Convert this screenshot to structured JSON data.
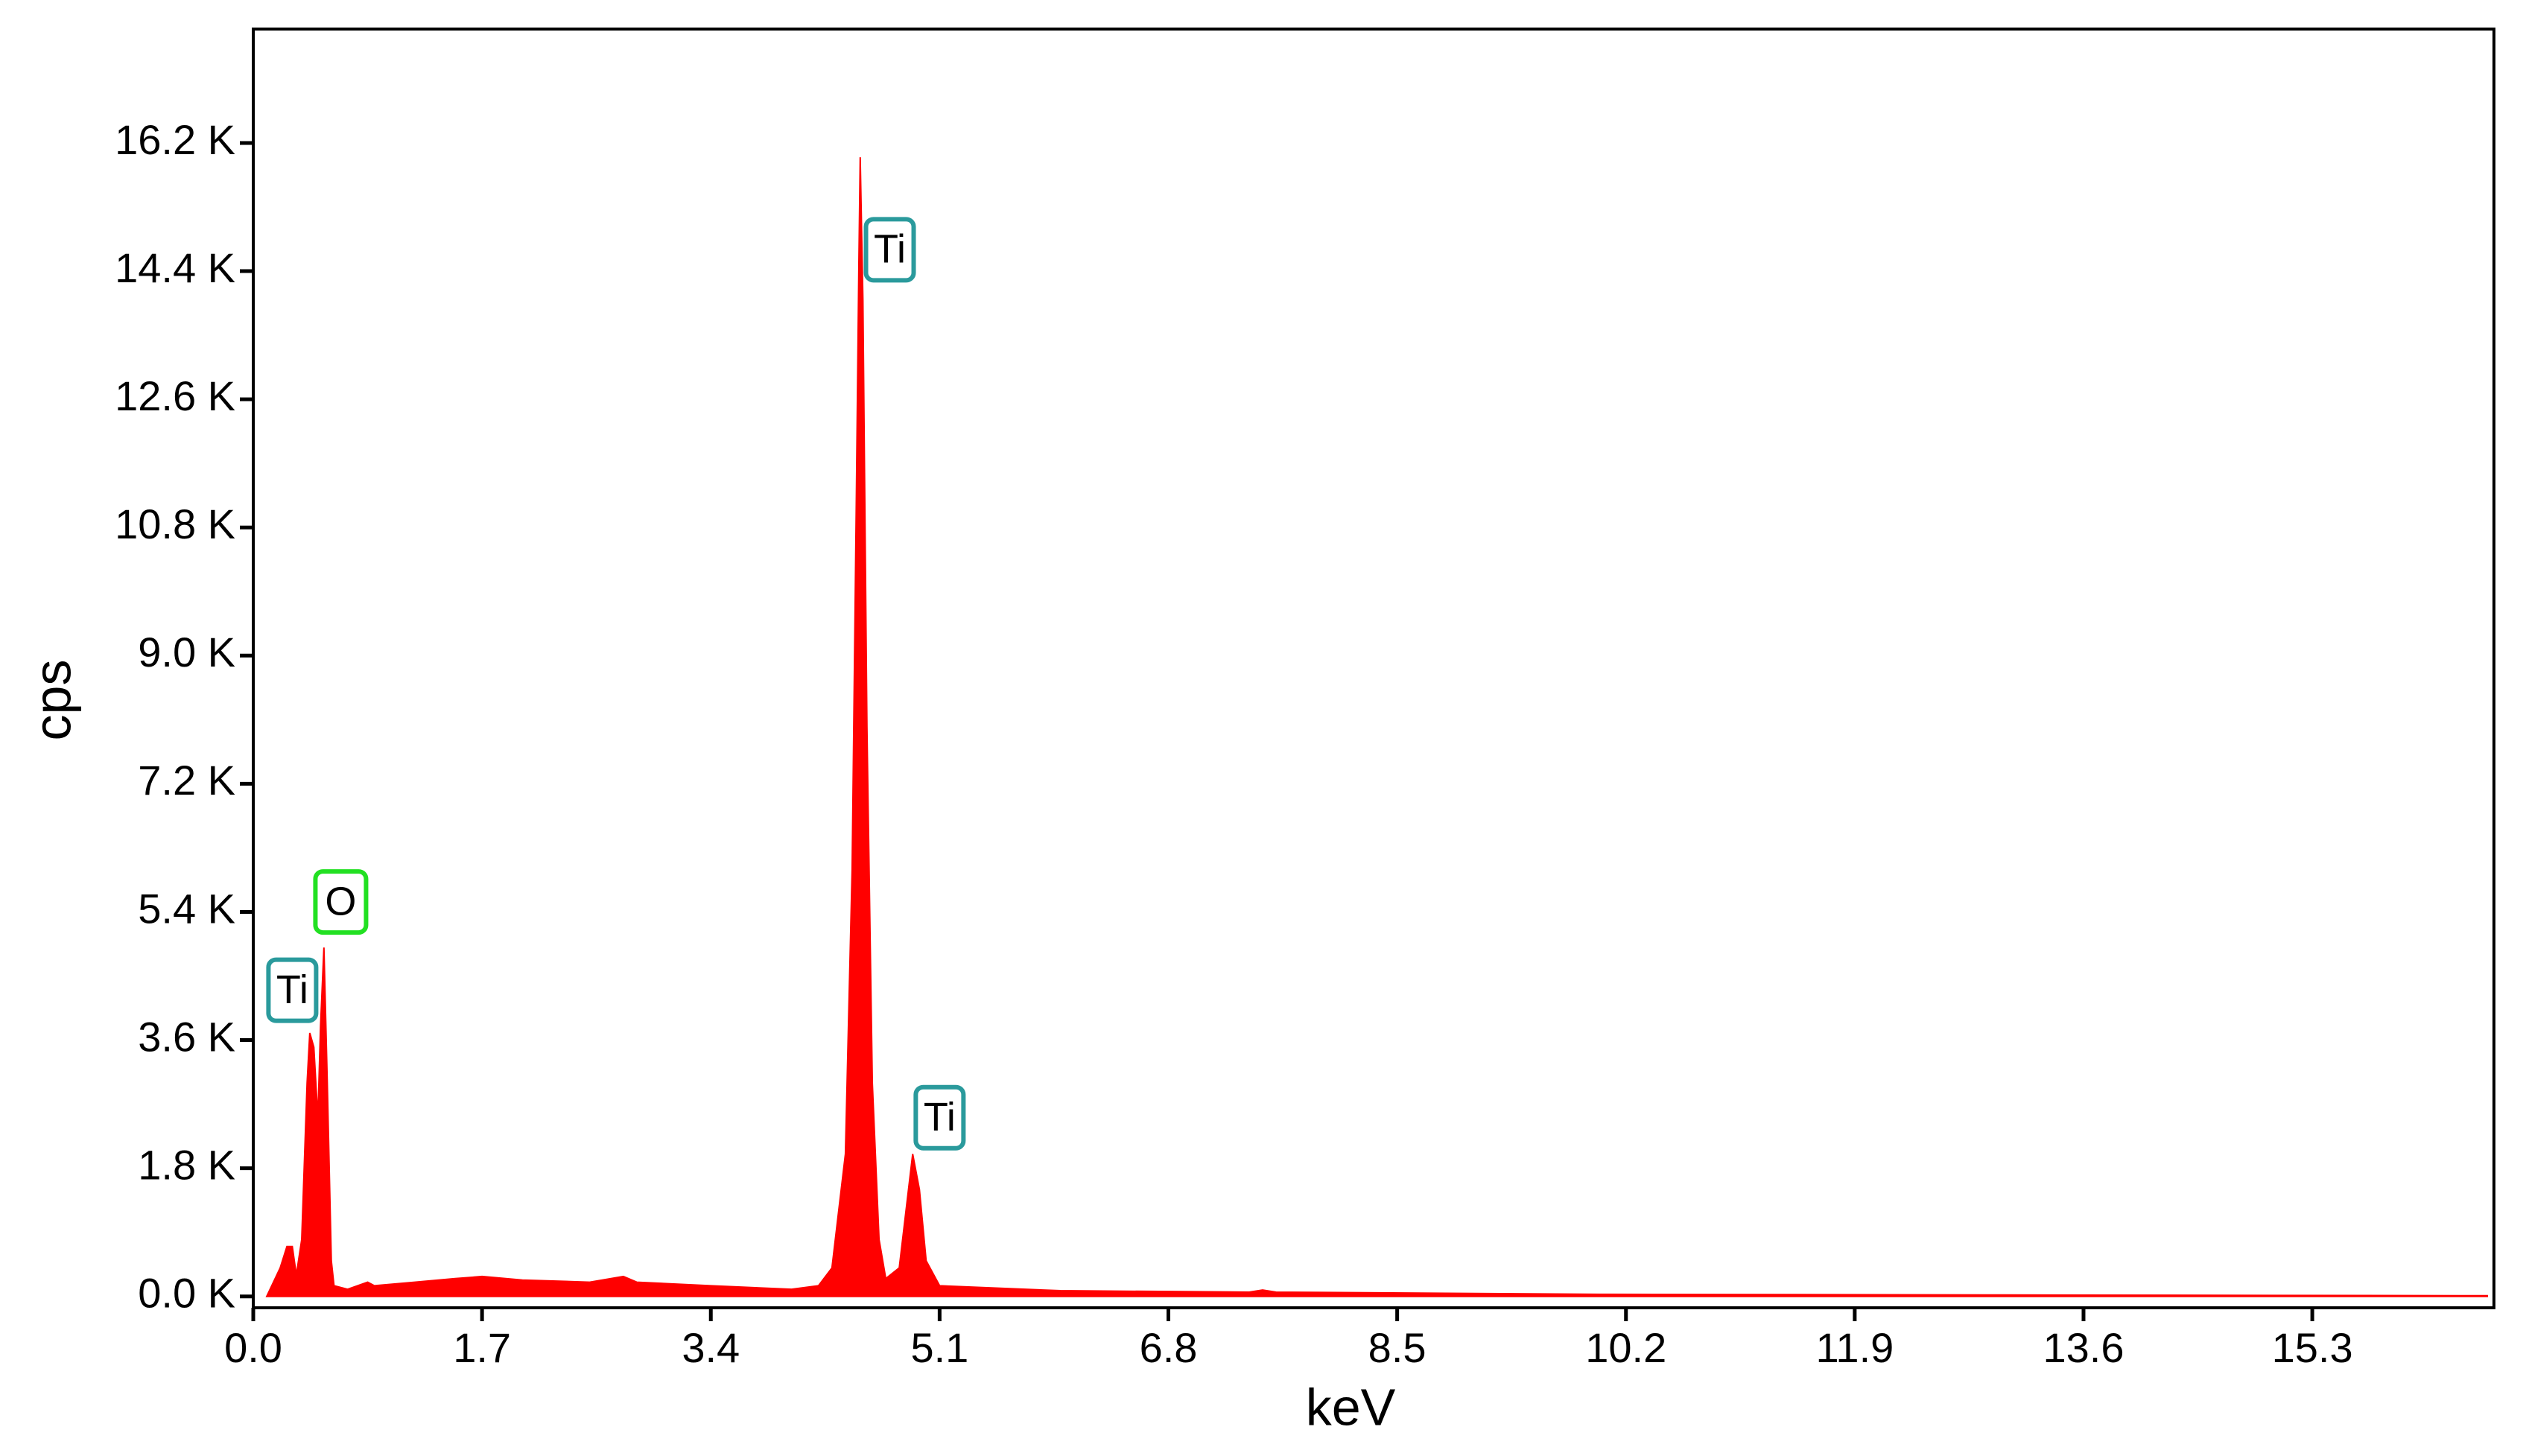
{
  "chart_data": {
    "type": "area",
    "xlabel": "keV",
    "ylabel": "cps",
    "x": [
      0.1,
      0.15,
      0.2,
      0.25,
      0.29,
      0.32,
      0.36,
      0.4,
      0.42,
      0.45,
      0.48,
      0.5,
      0.525,
      0.55,
      0.58,
      0.6,
      0.7,
      0.85,
      0.9,
      1.2,
      1.5,
      1.7,
      2.0,
      2.5,
      2.75,
      2.85,
      3.4,
      4.0,
      4.2,
      4.3,
      4.4,
      4.45,
      4.48,
      4.5,
      4.51,
      4.53,
      4.56,
      4.6,
      4.65,
      4.7,
      4.8,
      4.85,
      4.9,
      4.95,
      5.0,
      5.1,
      6.0,
      7.4,
      7.5,
      7.6,
      10,
      13,
      16.6
    ],
    "values": [
      0,
      200,
      400,
      700,
      700,
      300,
      800,
      3000,
      3700,
      3500,
      2500,
      3800,
      4900,
      3000,
      500,
      150,
      100,
      200,
      150,
      200,
      250,
      280,
      230,
      200,
      280,
      200,
      150,
      100,
      150,
      400,
      2000,
      6000,
      11000,
      14500,
      16000,
      14000,
      8000,
      3000,
      800,
      250,
      400,
      1200,
      2000,
      1500,
      500,
      150,
      80,
      60,
      90,
      60,
      30,
      20,
      10
    ],
    "color": "#ff0000",
    "xlim": [
      0,
      16.65
    ],
    "ylim": [
      -160,
      17800
    ],
    "xticks": [
      {
        "value": 0,
        "label": "0.0"
      },
      1.7,
      3.4,
      5.1,
      6.8,
      8.5,
      10.2,
      11.9,
      13.6,
      15.3
    ],
    "yticks": [
      {
        "value": 0,
        "label": "0.0 K"
      },
      {
        "value": 1800,
        "label": "1.8 K"
      },
      {
        "value": 3600,
        "label": "3.6 K"
      },
      {
        "value": 5400,
        "label": "5.4 K"
      },
      {
        "value": 7200,
        "label": "7.2 K"
      },
      {
        "value": 9000,
        "label": "9.0 K"
      },
      {
        "value": 10800,
        "label": "10.8 K"
      },
      {
        "value": 12600,
        "label": "12.6 K"
      },
      {
        "value": 14400,
        "label": "14.4 K"
      },
      {
        "value": 16200,
        "label": "16.2 K"
      }
    ],
    "annotations": [
      {
        "text": "Ti",
        "x": 0.29,
        "y": 4300,
        "color": "#2a9a9c"
      },
      {
        "text": "O",
        "x": 0.65,
        "y": 5540,
        "color": "#22e022"
      },
      {
        "text": "Ti",
        "x": 4.73,
        "y": 14700,
        "color": "#2a9a9c"
      },
      {
        "text": "Ti",
        "x": 5.1,
        "y": 2510,
        "color": "#2a9a9c"
      }
    ]
  }
}
